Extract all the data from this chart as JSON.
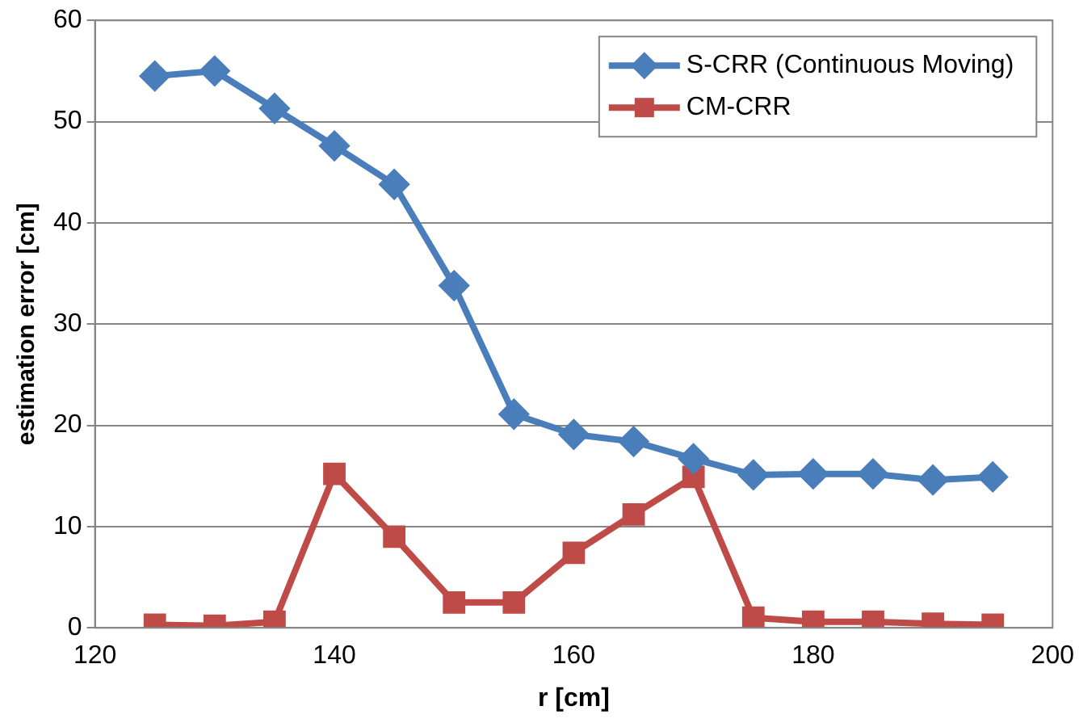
{
  "chart_data": {
    "type": "line",
    "xlabel": "r [cm]",
    "ylabel": "estimation error [cm]",
    "x": [
      125,
      130,
      135,
      140,
      145,
      150,
      155,
      160,
      165,
      170,
      175,
      180,
      185,
      190,
      195
    ],
    "series": [
      {
        "name": "S-CRR (Continuous Moving)",
        "color": "#4a7ebb",
        "marker": "diamond",
        "values": [
          54.5,
          55,
          51.3,
          47.6,
          43.8,
          33.8,
          21.1,
          19.1,
          18.4,
          16.7,
          15.1,
          15.2,
          15.2,
          14.6,
          14.9
        ]
      },
      {
        "name": "CM-CRR",
        "color": "#be4b48",
        "marker": "square",
        "values": [
          0.3,
          0.2,
          0.6,
          15.2,
          9,
          2.5,
          2.5,
          7.4,
          11.2,
          14.9,
          1,
          0.6,
          0.6,
          0.4,
          0.3
        ]
      }
    ],
    "xlim": [
      120,
      200
    ],
    "xticks": [
      120,
      140,
      160,
      180,
      200
    ],
    "ylim": [
      0,
      60
    ],
    "yticks": [
      0,
      10,
      20,
      30,
      40,
      50,
      60
    ],
    "grid": "y",
    "legend": "top right"
  }
}
